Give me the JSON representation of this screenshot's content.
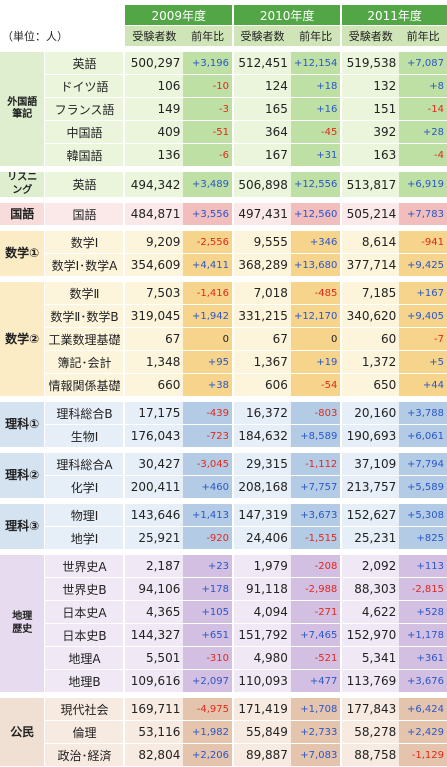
{
  "unit_label": "（単位：人）",
  "years": [
    "2009年度",
    "2010年度",
    "2011年度"
  ],
  "col_headers": [
    "受験者数",
    "前年比"
  ],
  "colors": {
    "year_bar": "#53a646",
    "header": "#cfe5b8",
    "diff_light": "#d7eec2",
    "positive": "#2a57c8",
    "negative": "#e0291d"
  },
  "groups": [
    {
      "label": "外国語\n筆記",
      "bg": "#dfeecf",
      "lbg": "#eaf5dc",
      "dbg": "#bfe0a4",
      "rows": [
        {
          "subject": "英語",
          "v": [
            "500,297",
            "512,451",
            "519,538"
          ],
          "d": [
            "+3,196",
            "+12,154",
            "+7,087"
          ]
        },
        {
          "subject": "ドイツ語",
          "v": [
            "106",
            "124",
            "132"
          ],
          "d": [
            "-10",
            "+18",
            "+8"
          ]
        },
        {
          "subject": "フランス語",
          "v": [
            "149",
            "165",
            "151"
          ],
          "d": [
            "-3",
            "+16",
            "-14"
          ]
        },
        {
          "subject": "中国語",
          "v": [
            "409",
            "364",
            "392"
          ],
          "d": [
            "-51",
            "-45",
            "+28"
          ]
        },
        {
          "subject": "韓国語",
          "v": [
            "136",
            "167",
            "163"
          ],
          "d": [
            "-6",
            "+31",
            "-4"
          ]
        }
      ]
    },
    {
      "label": "リスニング",
      "bg": "#dfeecf",
      "lbg": "#eaf5dc",
      "dbg": "#bfe0a4",
      "rows": [
        {
          "subject": "英語",
          "v": [
            "494,342",
            "506,898",
            "513,817"
          ],
          "d": [
            "+3,489",
            "+12,556",
            "+6,919"
          ]
        }
      ]
    },
    {
      "label": "国語",
      "bg": "#f8dcdc",
      "lbg": "#fbe9e9",
      "dbg": "#f1bdbd",
      "rows": [
        {
          "subject": "国語",
          "v": [
            "484,871",
            "497,431",
            "505,214"
          ],
          "d": [
            "+3,556",
            "+12,560",
            "+7,783"
          ]
        }
      ]
    },
    {
      "label": "数学①",
      "bg": "#fbecc6",
      "lbg": "#fdf4dc",
      "dbg": "#f6d48c",
      "rows": [
        {
          "subject": "数学Ⅰ",
          "v": [
            "9,209",
            "9,555",
            "8,614"
          ],
          "d": [
            "-2,556",
            "+346",
            "-941"
          ]
        },
        {
          "subject": "数学Ⅰ･数学A",
          "v": [
            "354,609",
            "368,289",
            "377,714"
          ],
          "d": [
            "+4,411",
            "+13,680",
            "+9,425"
          ]
        }
      ]
    },
    {
      "label": "数学②",
      "bg": "#fbecc6",
      "lbg": "#fdf4dc",
      "dbg": "#f6d48c",
      "rows": [
        {
          "subject": "数学Ⅱ",
          "v": [
            "7,503",
            "7,018",
            "7,185"
          ],
          "d": [
            "-1,416",
            "-485",
            "+167"
          ]
        },
        {
          "subject": "数学Ⅱ･数学B",
          "v": [
            "319,045",
            "331,215",
            "340,620"
          ],
          "d": [
            "+1,942",
            "+12,170",
            "+9,405"
          ]
        },
        {
          "subject": "工業数理基礎",
          "v": [
            "67",
            "67",
            "60"
          ],
          "d": [
            "0",
            "0",
            "-7"
          ]
        },
        {
          "subject": "簿記･会計",
          "v": [
            "1,348",
            "1,367",
            "1,372"
          ],
          "d": [
            "+95",
            "+19",
            "+5"
          ]
        },
        {
          "subject": "情報関係基礎",
          "v": [
            "660",
            "606",
            "650"
          ],
          "d": [
            "+38",
            "-54",
            "+44"
          ]
        }
      ]
    },
    {
      "label": "理科①",
      "bg": "#d5e3f1",
      "lbg": "#e6eef7",
      "dbg": "#b4cbe5",
      "rows": [
        {
          "subject": "理科総合B",
          "v": [
            "17,175",
            "16,372",
            "20,160"
          ],
          "d": [
            "-439",
            "-803",
            "+3,788"
          ]
        },
        {
          "subject": "生物Ⅰ",
          "v": [
            "176,043",
            "184,632",
            "190,693"
          ],
          "d": [
            "-723",
            "+8,589",
            "+6,061"
          ]
        }
      ]
    },
    {
      "label": "理科②",
      "bg": "#d5e3f1",
      "lbg": "#e6eef7",
      "dbg": "#b4cbe5",
      "rows": [
        {
          "subject": "理科総合A",
          "v": [
            "30,427",
            "29,315",
            "37,109"
          ],
          "d": [
            "-3,045",
            "-1,112",
            "+7,794"
          ]
        },
        {
          "subject": "化学Ⅰ",
          "v": [
            "200,411",
            "208,168",
            "213,757"
          ],
          "d": [
            "+460",
            "+7,757",
            "+5,589"
          ]
        }
      ]
    },
    {
      "label": "理科③",
      "bg": "#d5e3f1",
      "lbg": "#e6eef7",
      "dbg": "#b4cbe5",
      "rows": [
        {
          "subject": "物理Ⅰ",
          "v": [
            "143,646",
            "147,319",
            "152,627"
          ],
          "d": [
            "+1,413",
            "+3,673",
            "+5,308"
          ]
        },
        {
          "subject": "地学Ⅰ",
          "v": [
            "25,921",
            "24,406",
            "25,231"
          ],
          "d": [
            "-920",
            "-1,515",
            "+825"
          ]
        }
      ]
    },
    {
      "label": "地理\n歴史",
      "bg": "#e7dcef",
      "lbg": "#f0e9f5",
      "dbg": "#d3bfe2",
      "rows": [
        {
          "subject": "世界史A",
          "v": [
            "2,187",
            "1,979",
            "2,092"
          ],
          "d": [
            "+23",
            "-208",
            "+113"
          ]
        },
        {
          "subject": "世界史B",
          "v": [
            "94,106",
            "91,118",
            "88,303"
          ],
          "d": [
            "+178",
            "-2,988",
            "-2,815"
          ]
        },
        {
          "subject": "日本史A",
          "v": [
            "4,365",
            "4,094",
            "4,622"
          ],
          "d": [
            "+105",
            "-271",
            "+528"
          ]
        },
        {
          "subject": "日本史B",
          "v": [
            "144,327",
            "151,792",
            "152,970"
          ],
          "d": [
            "+651",
            "+7,465",
            "+1,178"
          ]
        },
        {
          "subject": "地理A",
          "v": [
            "5,501",
            "4,980",
            "5,341"
          ],
          "d": [
            "-310",
            "-521",
            "+361"
          ]
        },
        {
          "subject": "地理B",
          "v": [
            "109,616",
            "110,093",
            "113,769"
          ],
          "d": [
            "+2,097",
            "+477",
            "+3,676"
          ]
        }
      ]
    },
    {
      "label": "公民",
      "bg": "#f0dfd3",
      "lbg": "#f6eae1",
      "dbg": "#e5c4ad",
      "rows": [
        {
          "subject": "現代社会",
          "v": [
            "169,711",
            "171,419",
            "177,843"
          ],
          "d": [
            "-4,975",
            "+1,708",
            "+6,424"
          ]
        },
        {
          "subject": "倫理",
          "v": [
            "53,116",
            "55,849",
            "58,278"
          ],
          "d": [
            "+1,982",
            "+2,733",
            "+2,429"
          ]
        },
        {
          "subject": "政治･経済",
          "v": [
            "82,804",
            "89,887",
            "88,758"
          ],
          "d": [
            "+2,206",
            "+7,083",
            "-1,129"
          ]
        }
      ]
    }
  ]
}
